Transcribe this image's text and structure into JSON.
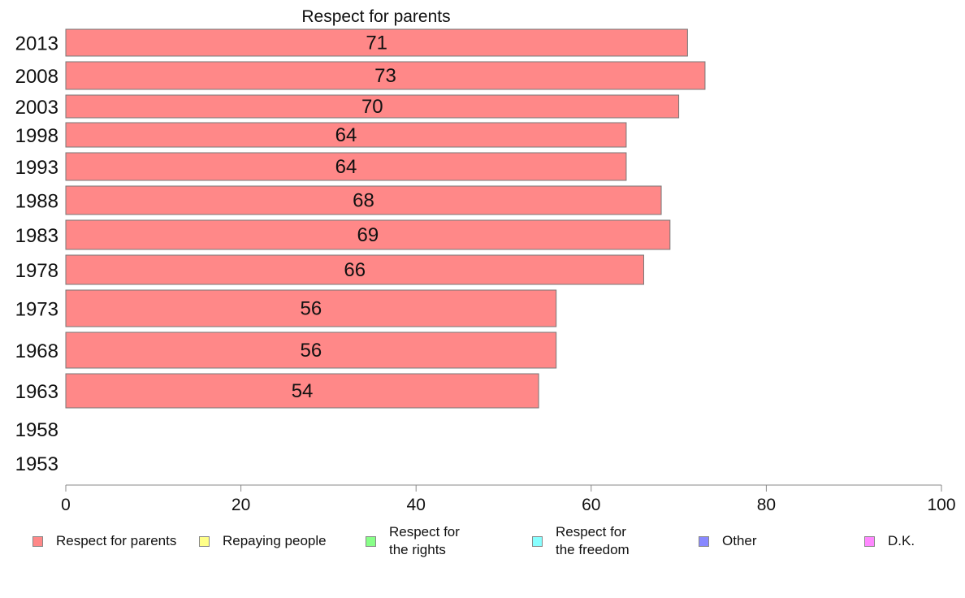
{
  "chart_data": {
    "type": "bar",
    "title": "Respect for parents",
    "categories": [
      "2013",
      "2008",
      "2003",
      "1998",
      "1993",
      "1988",
      "1983",
      "1978",
      "1973",
      "1968",
      "1963",
      "1958",
      "1953"
    ],
    "series": [
      {
        "name": "Respect for parents",
        "color": "#ff8888",
        "values": [
          71,
          73,
          70,
          64,
          64,
          68,
          69,
          66,
          56,
          56,
          54,
          null,
          null
        ]
      }
    ],
    "value_labels": [
      "71",
      "73",
      "70",
      "64",
      "64",
      "68",
      "69",
      "66",
      "56",
      "56",
      "54",
      "",
      ""
    ],
    "xlim": [
      0,
      100
    ],
    "xticks": [
      "0",
      "20",
      "40",
      "60",
      "80",
      "100"
    ],
    "legend_position": "bottom",
    "grid": false
  },
  "legend": [
    {
      "label": "Respect for parents",
      "color": "#ff8888"
    },
    {
      "label": "Repaying people",
      "color": "#ffff88"
    },
    {
      "label": "Respect for\nthe rights",
      "color": "#88ff88"
    },
    {
      "label": "Respect for\nthe freedom",
      "color": "#88ffff"
    },
    {
      "label": "Other",
      "color": "#8888ff"
    },
    {
      "label": "D.K.",
      "color": "#ff88ff"
    }
  ]
}
